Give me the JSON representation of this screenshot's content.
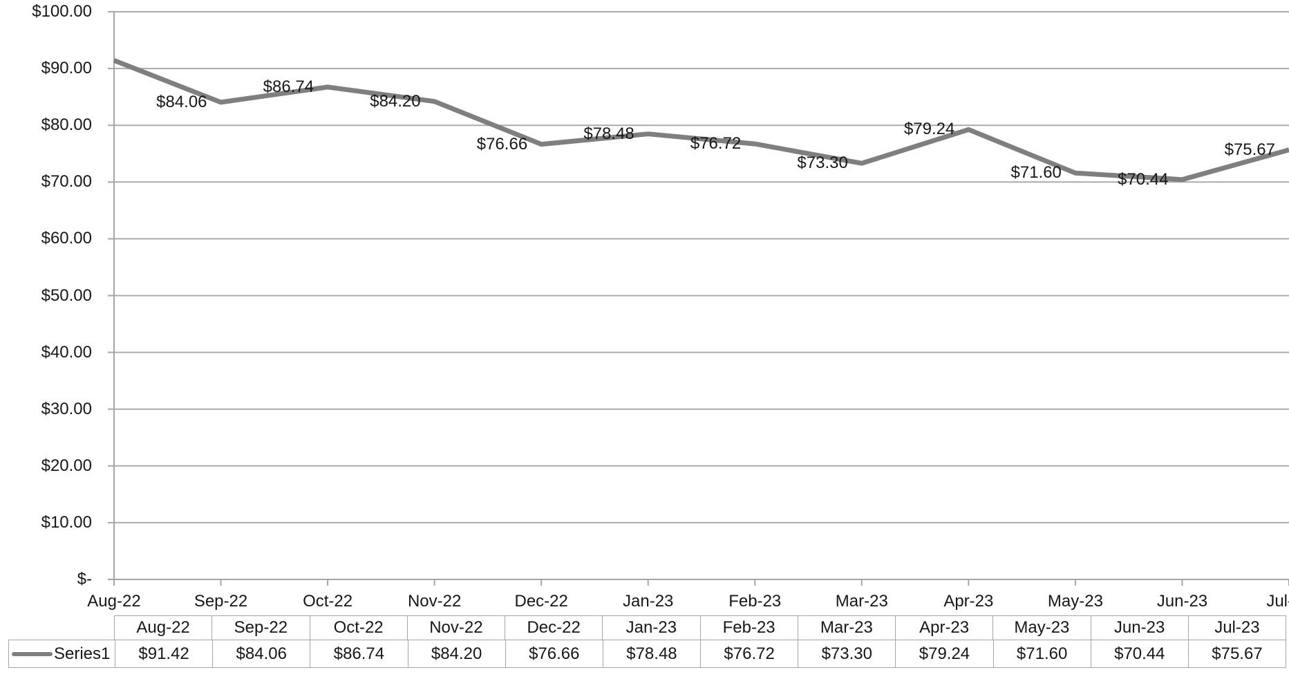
{
  "chart_data": {
    "type": "line",
    "title": "",
    "categories": [
      "Aug-22",
      "Sep-22",
      "Oct-22",
      "Nov-22",
      "Dec-22",
      "Jan-23",
      "Feb-23",
      "Mar-23",
      "Apr-23",
      "May-23",
      "Jun-23",
      "Jul-23"
    ],
    "series": [
      {
        "name": "Series1",
        "values": [
          91.42,
          84.06,
          86.74,
          84.2,
          76.66,
          78.48,
          76.72,
          73.3,
          79.24,
          71.6,
          70.44,
          75.67
        ]
      }
    ],
    "data_labels": [
      null,
      "$84.06",
      "$86.74",
      "$84.20",
      "$76.66",
      "$78.48",
      "$76.72",
      "$73.30",
      "$79.24",
      "$71.60",
      "$70.44",
      "$75.67"
    ],
    "data_label_position": "left-of-point",
    "y_axis": {
      "min": 0,
      "max": 100,
      "step": 10,
      "tick_labels_top_to_bottom": [
        "$100.00",
        "$90.00",
        "$80.00",
        "$70.00",
        "$60.00",
        "$50.00",
        "$40.00",
        "$30.00",
        "$20.00",
        "$10.00",
        "$-"
      ]
    },
    "grid": true,
    "legend_position": "data-table-left",
    "colors": {
      "series_line": "#7F7F7F",
      "gridline": "#ABABAB",
      "axis": "#A6A6A6",
      "table_border": "#A6A6A6",
      "text": "#171717",
      "background": "#FFFFFF"
    }
  },
  "data_table": {
    "legend_label": "Series1",
    "columns": [
      "Aug-22",
      "Sep-22",
      "Oct-22",
      "Nov-22",
      "Dec-22",
      "Jan-23",
      "Feb-23",
      "Mar-23",
      "Apr-23",
      "May-23",
      "Jun-23",
      "Jul-23"
    ],
    "values": [
      "$91.42",
      "$84.06",
      "$86.74",
      "$84.20",
      "$76.66",
      "$78.48",
      "$76.72",
      "$73.30",
      "$79.24",
      "$71.60",
      "$70.44",
      "$75.67"
    ]
  }
}
